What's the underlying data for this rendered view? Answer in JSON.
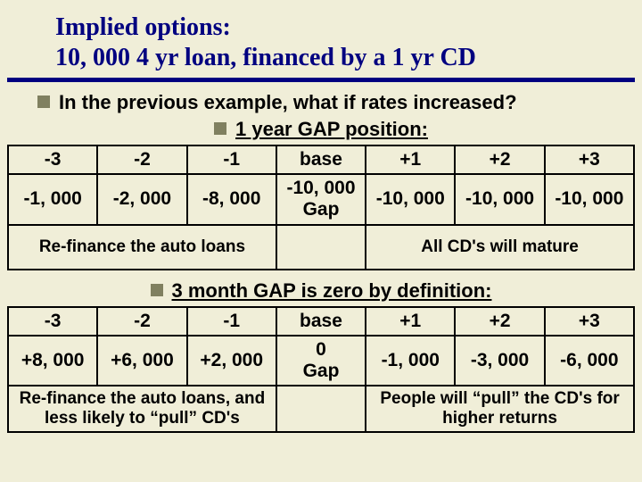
{
  "title_line1": "Implied options:",
  "title_line2": "10, 000 4 yr loan, financed by a 1 yr CD",
  "bullet1": "In the previous example, what if rates increased?",
  "bullet2": "1 year GAP position:",
  "bullet3": "3 month GAP is zero by definition:",
  "table1": {
    "headers": [
      "-3",
      "-2",
      "-1",
      "base",
      "+1",
      "+2",
      "+3"
    ],
    "values": [
      "-1, 000",
      "-2, 000",
      "-8, 000",
      "-10, 000\nGap",
      "-10, 000",
      "-10, 000",
      "-10, 000"
    ],
    "foot_left": "Re-finance the auto loans",
    "foot_mid": "",
    "foot_right": "All CD's will mature"
  },
  "table2": {
    "headers": [
      "-3",
      "-2",
      "-1",
      "base",
      "+1",
      "+2",
      "+3"
    ],
    "values": [
      "+8, 000",
      "+6, 000",
      "+2, 000",
      "0\nGap",
      "-1, 000",
      "-3, 000",
      "-6, 000"
    ],
    "foot_left": "Re-finance the auto loans, and less likely to “pull” CD's",
    "foot_mid": "",
    "foot_right": "People will “pull” the CD's for higher returns"
  },
  "colors": {
    "background": "#f0eed8",
    "title": "#000080",
    "bullet": "#808060",
    "border": "#000000"
  }
}
